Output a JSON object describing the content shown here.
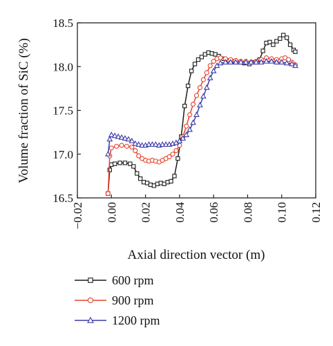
{
  "chart_data": {
    "type": "line",
    "xlabel": "Axial direction vector (m)",
    "ylabel": "Volume fraction of SiC (%)",
    "xlim": [
      -0.02,
      0.12
    ],
    "ylim": [
      16.5,
      18.5
    ],
    "xticks": [
      "-0.02",
      "0.00",
      "0.02",
      "0.04",
      "0.06",
      "0.08",
      "0.10",
      "0.12"
    ],
    "yticks": [
      "16.5",
      "17.0",
      "17.5",
      "18.0",
      "18.5"
    ],
    "legend_position": "bottom-left, below axes",
    "series": [
      {
        "name": "600 rpm",
        "color": "#1a1a1a",
        "marker": "square",
        "points": [
          [
            -0.002,
            16.55
          ],
          [
            -0.001,
            16.82
          ],
          [
            0.0,
            16.88
          ],
          [
            0.002,
            16.89
          ],
          [
            0.005,
            16.9
          ],
          [
            0.008,
            16.9
          ],
          [
            0.011,
            16.89
          ],
          [
            0.013,
            16.86
          ],
          [
            0.015,
            16.78
          ],
          [
            0.017,
            16.72
          ],
          [
            0.019,
            16.68
          ],
          [
            0.021,
            16.67
          ],
          [
            0.023,
            16.65
          ],
          [
            0.025,
            16.64
          ],
          [
            0.027,
            16.66
          ],
          [
            0.029,
            16.67
          ],
          [
            0.031,
            16.66
          ],
          [
            0.033,
            16.68
          ],
          [
            0.035,
            16.69
          ],
          [
            0.037,
            16.75
          ],
          [
            0.039,
            16.95
          ],
          [
            0.041,
            17.2
          ],
          [
            0.043,
            17.55
          ],
          [
            0.045,
            17.78
          ],
          [
            0.047,
            17.95
          ],
          [
            0.049,
            18.03
          ],
          [
            0.051,
            18.08
          ],
          [
            0.053,
            18.11
          ],
          [
            0.055,
            18.14
          ],
          [
            0.057,
            18.16
          ],
          [
            0.059,
            18.15
          ],
          [
            0.061,
            18.14
          ],
          [
            0.063,
            18.12
          ],
          [
            0.066,
            18.09
          ],
          [
            0.069,
            18.07
          ],
          [
            0.072,
            18.06
          ],
          [
            0.075,
            18.05
          ],
          [
            0.078,
            18.04
          ],
          [
            0.081,
            18.03
          ],
          [
            0.084,
            18.05
          ],
          [
            0.087,
            18.08
          ],
          [
            0.089,
            18.18
          ],
          [
            0.091,
            18.27
          ],
          [
            0.093,
            18.28
          ],
          [
            0.095,
            18.25
          ],
          [
            0.097,
            18.29
          ],
          [
            0.099,
            18.32
          ],
          [
            0.101,
            18.36
          ],
          [
            0.103,
            18.33
          ],
          [
            0.105,
            18.25
          ],
          [
            0.107,
            18.19
          ],
          [
            0.108,
            18.17
          ]
        ]
      },
      {
        "name": "900 rpm",
        "color": "#e8402a",
        "marker": "circle",
        "points": [
          [
            -0.002,
            16.55
          ],
          [
            -0.001,
            16.98
          ],
          [
            0.0,
            17.07
          ],
          [
            0.003,
            17.09
          ],
          [
            0.006,
            17.1
          ],
          [
            0.009,
            17.09
          ],
          [
            0.012,
            17.08
          ],
          [
            0.014,
            17.04
          ],
          [
            0.016,
            16.98
          ],
          [
            0.018,
            16.95
          ],
          [
            0.02,
            16.93
          ],
          [
            0.022,
            16.92
          ],
          [
            0.024,
            16.93
          ],
          [
            0.026,
            16.92
          ],
          [
            0.028,
            16.91
          ],
          [
            0.03,
            16.93
          ],
          [
            0.032,
            16.95
          ],
          [
            0.034,
            16.97
          ],
          [
            0.036,
            17.0
          ],
          [
            0.038,
            17.04
          ],
          [
            0.04,
            17.1
          ],
          [
            0.042,
            17.2
          ],
          [
            0.044,
            17.32
          ],
          [
            0.046,
            17.45
          ],
          [
            0.048,
            17.57
          ],
          [
            0.05,
            17.67
          ],
          [
            0.052,
            17.76
          ],
          [
            0.054,
            17.85
          ],
          [
            0.056,
            17.93
          ],
          [
            0.058,
            18.01
          ],
          [
            0.06,
            18.06
          ],
          [
            0.062,
            18.09
          ],
          [
            0.064,
            18.1
          ],
          [
            0.067,
            18.09
          ],
          [
            0.07,
            18.08
          ],
          [
            0.073,
            18.07
          ],
          [
            0.076,
            18.06
          ],
          [
            0.079,
            18.06
          ],
          [
            0.082,
            18.05
          ],
          [
            0.085,
            18.06
          ],
          [
            0.088,
            18.08
          ],
          [
            0.091,
            18.1
          ],
          [
            0.094,
            18.09
          ],
          [
            0.097,
            18.08
          ],
          [
            0.1,
            18.09
          ],
          [
            0.102,
            18.1
          ],
          [
            0.104,
            18.08
          ],
          [
            0.106,
            18.05
          ],
          [
            0.108,
            18.02
          ]
        ]
      },
      {
        "name": "1200 rpm",
        "color": "#3a3aa8",
        "marker": "triangle",
        "points": [
          [
            -0.002,
            17.0
          ],
          [
            -0.001,
            17.17
          ],
          [
            0.0,
            17.22
          ],
          [
            0.002,
            17.21
          ],
          [
            0.004,
            17.2
          ],
          [
            0.006,
            17.19
          ],
          [
            0.008,
            17.18
          ],
          [
            0.01,
            17.17
          ],
          [
            0.012,
            17.15
          ],
          [
            0.014,
            17.12
          ],
          [
            0.016,
            17.11
          ],
          [
            0.018,
            17.1
          ],
          [
            0.02,
            17.1
          ],
          [
            0.022,
            17.11
          ],
          [
            0.024,
            17.11
          ],
          [
            0.026,
            17.11
          ],
          [
            0.028,
            17.1
          ],
          [
            0.03,
            17.11
          ],
          [
            0.032,
            17.11
          ],
          [
            0.034,
            17.11
          ],
          [
            0.036,
            17.12
          ],
          [
            0.038,
            17.13
          ],
          [
            0.04,
            17.15
          ],
          [
            0.042,
            17.18
          ],
          [
            0.044,
            17.22
          ],
          [
            0.046,
            17.28
          ],
          [
            0.048,
            17.36
          ],
          [
            0.05,
            17.45
          ],
          [
            0.052,
            17.56
          ],
          [
            0.054,
            17.66
          ],
          [
            0.056,
            17.76
          ],
          [
            0.058,
            17.87
          ],
          [
            0.06,
            17.95
          ],
          [
            0.062,
            18.01
          ],
          [
            0.064,
            18.04
          ],
          [
            0.067,
            18.05
          ],
          [
            0.07,
            18.05
          ],
          [
            0.073,
            18.05
          ],
          [
            0.076,
            18.05
          ],
          [
            0.079,
            18.05
          ],
          [
            0.082,
            18.05
          ],
          [
            0.085,
            18.05
          ],
          [
            0.088,
            18.05
          ],
          [
            0.091,
            18.06
          ],
          [
            0.094,
            18.06
          ],
          [
            0.097,
            18.05
          ],
          [
            0.1,
            18.05
          ],
          [
            0.103,
            18.04
          ],
          [
            0.106,
            18.03
          ],
          [
            0.108,
            18.01
          ]
        ]
      }
    ]
  }
}
